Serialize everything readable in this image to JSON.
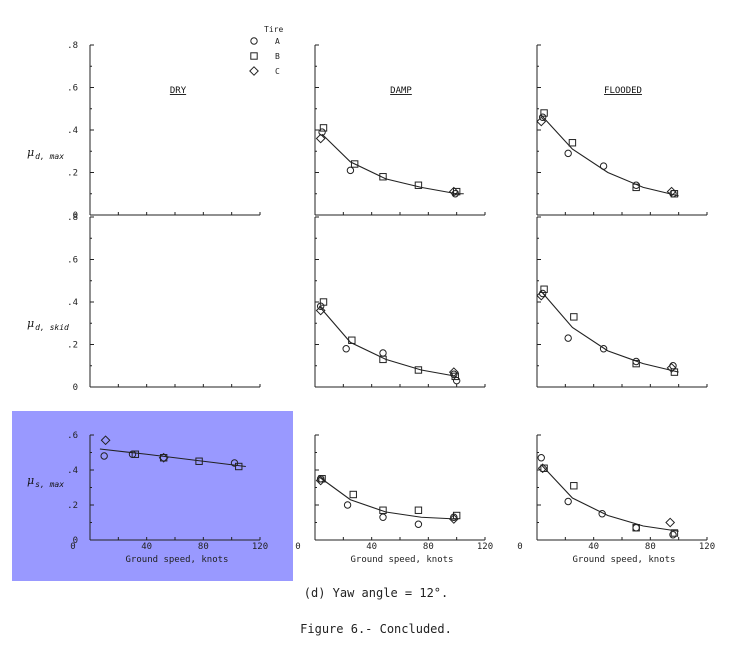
{
  "legend": {
    "title": "Tire",
    "entries": [
      {
        "marker": "circle",
        "label": "A"
      },
      {
        "marker": "square",
        "label": "B"
      },
      {
        "marker": "diamond",
        "label": "C"
      }
    ]
  },
  "columns": [
    "DRY",
    "DAMP",
    "FLOODED"
  ],
  "row_labels": [
    {
      "main": "μ",
      "sub": "d, max"
    },
    {
      "main": "μ",
      "sub": "d, skid"
    },
    {
      "main": "μ",
      "sub": "s, max"
    }
  ],
  "y_ticks": [
    "0",
    ".2",
    ".4",
    ".6",
    ".8"
  ],
  "y_ticks_bottom": [
    "0",
    ".2",
    ".4",
    ".6"
  ],
  "x_ticks": [
    "0",
    "40",
    "80",
    "120"
  ],
  "x_label": "Ground speed, knots",
  "highlight_color": "#9999ff",
  "caption": {
    "subtitle": "(d) Yaw angle = 12°.",
    "figure": "Figure 6.- Concluded."
  },
  "chart_data": [
    {
      "type": "scatter",
      "row": 0,
      "col": 0,
      "title": "DRY",
      "xlim": [
        0,
        120
      ],
      "ylim": [
        0,
        0.8
      ],
      "fit": [],
      "series": []
    },
    {
      "type": "scatter",
      "row": 0,
      "col": 1,
      "title": "DAMP",
      "xlim": [
        0,
        120
      ],
      "ylim": [
        0,
        0.8
      ],
      "fit": [
        [
          5,
          0.38
        ],
        [
          25,
          0.25
        ],
        [
          50,
          0.17
        ],
        [
          75,
          0.13
        ],
        [
          100,
          0.1
        ],
        [
          105,
          0.1
        ]
      ],
      "series": [
        {
          "marker": "circle",
          "points": [
            [
              5,
              0.39
            ],
            [
              25,
              0.21
            ],
            [
              99,
              0.1
            ]
          ]
        },
        {
          "marker": "square",
          "points": [
            [
              6,
              0.41
            ],
            [
              28,
              0.24
            ],
            [
              48,
              0.18
            ],
            [
              73,
              0.14
            ],
            [
              100,
              0.11
            ]
          ]
        },
        {
          "marker": "diamond",
          "points": [
            [
              4,
              0.36
            ],
            [
              98,
              0.11
            ]
          ]
        }
      ]
    },
    {
      "type": "scatter",
      "row": 0,
      "col": 2,
      "title": "FLOODED",
      "xlim": [
        0,
        120
      ],
      "ylim": [
        0,
        0.8
      ],
      "fit": [
        [
          3,
          0.47
        ],
        [
          25,
          0.31
        ],
        [
          50,
          0.2
        ],
        [
          75,
          0.13
        ],
        [
          100,
          0.09
        ]
      ],
      "series": [
        {
          "marker": "circle",
          "points": [
            [
              4,
              0.46
            ],
            [
              22,
              0.29
            ],
            [
              47,
              0.23
            ],
            [
              70,
              0.14
            ],
            [
              96,
              0.1
            ]
          ]
        },
        {
          "marker": "square",
          "points": [
            [
              5,
              0.48
            ],
            [
              25,
              0.34
            ],
            [
              70,
              0.13
            ],
            [
              97,
              0.1
            ]
          ]
        },
        {
          "marker": "diamond",
          "points": [
            [
              3,
              0.44
            ],
            [
              95,
              0.11
            ]
          ]
        }
      ]
    },
    {
      "type": "scatter",
      "row": 1,
      "col": 0,
      "title": "DRY",
      "xlim": [
        0,
        120
      ],
      "ylim": [
        0,
        0.8
      ],
      "fit": [],
      "series": []
    },
    {
      "type": "scatter",
      "row": 1,
      "col": 1,
      "title": "DAMP",
      "xlim": [
        0,
        120
      ],
      "ylim": [
        0,
        0.8
      ],
      "fit": [
        [
          3,
          0.38
        ],
        [
          25,
          0.21
        ],
        [
          50,
          0.13
        ],
        [
          75,
          0.08
        ],
        [
          100,
          0.05
        ]
      ],
      "series": [
        {
          "marker": "circle",
          "points": [
            [
              4,
              0.38
            ],
            [
              22,
              0.18
            ],
            [
              48,
              0.16
            ],
            [
              98,
              0.06
            ],
            [
              100,
              0.03
            ]
          ]
        },
        {
          "marker": "square",
          "points": [
            [
              6,
              0.4
            ],
            [
              26,
              0.22
            ],
            [
              48,
              0.13
            ],
            [
              73,
              0.08
            ],
            [
              99,
              0.05
            ]
          ]
        },
        {
          "marker": "diamond",
          "points": [
            [
              4,
              0.36
            ],
            [
              98,
              0.07
            ]
          ]
        }
      ]
    },
    {
      "type": "scatter",
      "row": 1,
      "col": 2,
      "title": "FLOODED",
      "xlim": [
        0,
        120
      ],
      "ylim": [
        0,
        0.8
      ],
      "fit": [
        [
          3,
          0.45
        ],
        [
          25,
          0.28
        ],
        [
          50,
          0.17
        ],
        [
          75,
          0.11
        ],
        [
          100,
          0.07
        ]
      ],
      "series": [
        {
          "marker": "circle",
          "points": [
            [
              4,
              0.44
            ],
            [
              22,
              0.23
            ],
            [
              47,
              0.18
            ],
            [
              70,
              0.12
            ],
            [
              96,
              0.1
            ]
          ]
        },
        {
          "marker": "square",
          "points": [
            [
              5,
              0.46
            ],
            [
              26,
              0.33
            ],
            [
              70,
              0.11
            ],
            [
              97,
              0.07
            ]
          ]
        },
        {
          "marker": "diamond",
          "points": [
            [
              3,
              0.43
            ],
            [
              95,
              0.09
            ]
          ]
        }
      ]
    },
    {
      "type": "scatter",
      "row": 2,
      "col": 0,
      "title": "DRY",
      "xlim": [
        0,
        120
      ],
      "ylim": [
        0,
        0.6
      ],
      "fit": [
        [
          7,
          0.52
        ],
        [
          40,
          0.49
        ],
        [
          80,
          0.45
        ],
        [
          110,
          0.42
        ]
      ],
      "series": [
        {
          "marker": "circle",
          "points": [
            [
              10,
              0.48
            ],
            [
              30,
              0.49
            ],
            [
              102,
              0.44
            ]
          ]
        },
        {
          "marker": "square",
          "points": [
            [
              32,
              0.49
            ],
            [
              52,
              0.47
            ],
            [
              77,
              0.45
            ],
            [
              105,
              0.42
            ]
          ]
        },
        {
          "marker": "diamond",
          "points": [
            [
              11,
              0.57
            ],
            [
              52,
              0.47
            ]
          ]
        }
      ]
    },
    {
      "type": "scatter",
      "row": 2,
      "col": 1,
      "title": "DAMP",
      "xlim": [
        0,
        120
      ],
      "ylim": [
        0,
        0.6
      ],
      "fit": [
        [
          3,
          0.36
        ],
        [
          25,
          0.23
        ],
        [
          50,
          0.16
        ],
        [
          75,
          0.13
        ],
        [
          100,
          0.12
        ]
      ],
      "series": [
        {
          "marker": "circle",
          "points": [
            [
              4,
              0.35
            ],
            [
              23,
              0.2
            ],
            [
              48,
              0.13
            ],
            [
              73,
              0.09
            ],
            [
              98,
              0.13
            ]
          ]
        },
        {
          "marker": "square",
          "points": [
            [
              5,
              0.35
            ],
            [
              27,
              0.26
            ],
            [
              48,
              0.17
            ],
            [
              73,
              0.17
            ],
            [
              100,
              0.14
            ]
          ]
        },
        {
          "marker": "diamond",
          "points": [
            [
              4,
              0.34
            ],
            [
              98,
              0.12
            ]
          ]
        }
      ]
    },
    {
      "type": "scatter",
      "row": 2,
      "col": 2,
      "title": "FLOODED",
      "xlim": [
        0,
        120
      ],
      "ylim": [
        0,
        0.6
      ],
      "fit": [
        [
          3,
          0.43
        ],
        [
          25,
          0.24
        ],
        [
          50,
          0.14
        ],
        [
          75,
          0.08
        ],
        [
          100,
          0.05
        ]
      ],
      "series": [
        {
          "marker": "circle",
          "points": [
            [
              3,
              0.47
            ],
            [
              22,
              0.22
            ],
            [
              46,
              0.15
            ],
            [
              70,
              0.07
            ],
            [
              96,
              0.03
            ]
          ]
        },
        {
          "marker": "square",
          "points": [
            [
              5,
              0.41
            ],
            [
              26,
              0.31
            ],
            [
              70,
              0.07
            ],
            [
              97,
              0.04
            ]
          ]
        },
        {
          "marker": "diamond",
          "points": [
            [
              4,
              0.41
            ],
            [
              94,
              0.1
            ]
          ]
        }
      ]
    }
  ]
}
